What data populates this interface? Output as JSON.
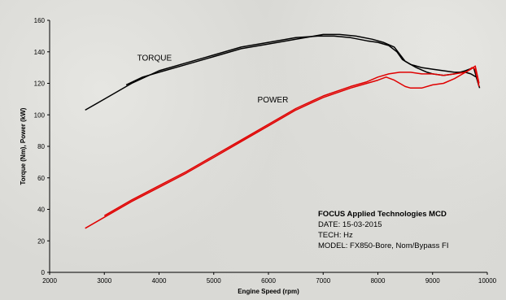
{
  "chart_data": {
    "type": "line",
    "xlabel": "Engine Speed (rpm)",
    "ylabel": "Torque (Nm), Power (kW)",
    "xlim": [
      2000,
      10000
    ],
    "ylim": [
      0,
      160
    ],
    "xticks": [
      "2000",
      "3000",
      "4000",
      "5000",
      "6000",
      "7000",
      "8000",
      "9000",
      "10000"
    ],
    "yticks": [
      "0",
      "20",
      "40",
      "60",
      "80",
      "100",
      "120",
      "140",
      "160"
    ],
    "grid": false,
    "series": [
      {
        "group": "torque",
        "color": "#000000",
        "x": [
          2650,
          3000,
          3500,
          4000,
          4500,
          5000,
          5500,
          6000,
          6500,
          6900,
          7200,
          7500,
          7800,
          8000,
          8200,
          8350,
          8450,
          8600,
          8800,
          9000,
          9200,
          9400,
          9600,
          9700,
          9800,
          9860
        ],
        "y": [
          103,
          110,
          120,
          128,
          133,
          138,
          143,
          146,
          149,
          150,
          150,
          149,
          147,
          146,
          144,
          140,
          135,
          132,
          130,
          129,
          128,
          127,
          127,
          126,
          124,
          117
        ]
      },
      {
        "group": "torque",
        "color": "#000000",
        "x": [
          3400,
          3700,
          4000,
          4500,
          5000,
          5500,
          6000,
          6500,
          7000,
          7300,
          7600,
          7900,
          8100,
          8300,
          8500,
          8700,
          8900,
          9000,
          9200,
          9400,
          9600,
          9750,
          9850
        ],
        "y": [
          119,
          124,
          127,
          132,
          137,
          142,
          145,
          148,
          151,
          151,
          150,
          148,
          146,
          143,
          134,
          130,
          127,
          126,
          125,
          126,
          128,
          130,
          118
        ]
      },
      {
        "group": "power",
        "color": "#e00000",
        "x": [
          2650,
          3000,
          3500,
          4000,
          4500,
          5000,
          5500,
          6000,
          6500,
          7000,
          7500,
          7800,
          8000,
          8150,
          8300,
          8400,
          8500,
          8600,
          8800,
          9000,
          9200,
          9400,
          9550,
          9650,
          9720,
          9780,
          9850
        ],
        "y": [
          28,
          35,
          45,
          54,
          63,
          73,
          83,
          93,
          103,
          111,
          117,
          120,
          122,
          124,
          122,
          120,
          118,
          117,
          117,
          119,
          120,
          123,
          126,
          128,
          130,
          129,
          118
        ]
      },
      {
        "group": "power",
        "color": "#e00000",
        "x": [
          3000,
          3500,
          4000,
          4500,
          5000,
          5500,
          6000,
          6500,
          7000,
          7500,
          7800,
          8000,
          8200,
          8400,
          8600,
          8800,
          9000,
          9200,
          9400,
          9600,
          9700,
          9780,
          9850
        ],
        "y": [
          36,
          46,
          55,
          64,
          74,
          84,
          94,
          104,
          112,
          118,
          121,
          124,
          126,
          127,
          127,
          126,
          126,
          125,
          126,
          127,
          129,
          131,
          120
        ]
      }
    ],
    "annotations": [
      {
        "text": "TORQUE",
        "x": 3600,
        "y": 134.5
      },
      {
        "text": "POWER",
        "x": 5800,
        "y": 108
      }
    ]
  },
  "info": {
    "title": "FOCUS Applied Technologies MCD",
    "date": "DATE: 15-03-2015",
    "tech": "TECH: Hz",
    "model": "MODEL: FX850-Bore, Nom/Bypass FI"
  }
}
